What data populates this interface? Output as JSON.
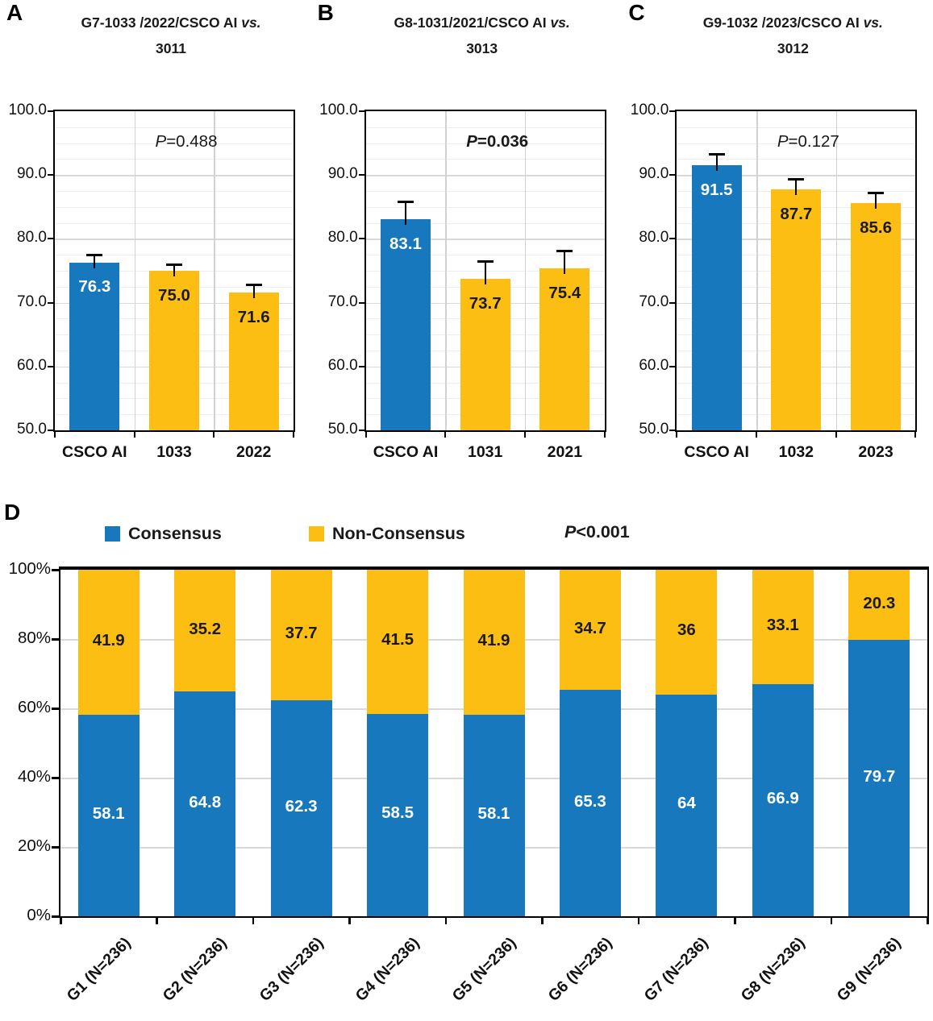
{
  "figure": {
    "background": "#ffffff",
    "colors": {
      "blue": "#1778BE",
      "yellow": "#FDBE13",
      "grid_major": "#d9d9d9",
      "grid_minor": "#ededed",
      "separator": "#d2d2d2",
      "axis_black": "#000000",
      "text_black": "#1a1a1a"
    },
    "legend": {
      "items": [
        {
          "label": "Consensus",
          "color_key": "blue"
        },
        {
          "label": "Non-Consensus",
          "color_key": "yellow"
        }
      ]
    }
  },
  "chart_data": [
    {
      "panel": "A",
      "type": "bar",
      "title": {
        "line1_main": "G7-1033 /2022/CSCO AI ",
        "line1_italic": "vs.",
        "line2": "3011"
      },
      "p_value": {
        "symbol": "P",
        "rest": "=0.488",
        "bold": false
      },
      "categories": [
        "CSCO AI",
        "1033",
        "2022"
      ],
      "values": [
        76.3,
        75.0,
        71.6
      ],
      "value_labels": [
        "76.3",
        "75.0",
        "71.6"
      ],
      "errors_upper": [
        1.3,
        1.2,
        1.4
      ],
      "bar_color_keys": [
        "blue",
        "yellow",
        "yellow"
      ],
      "value_label_colors": [
        "#ffffff",
        "#1a1a1a",
        "#1a1a1a"
      ],
      "ylim": [
        50,
        100
      ],
      "ytick_step": 10,
      "ytick_labels": [
        "50.0",
        "60.0",
        "70.0",
        "80.0",
        "90.0",
        "100.0"
      ],
      "grid": "minor horizontal every 2.5, major every 10, vertical category separators",
      "legend_position": "none"
    },
    {
      "panel": "B",
      "type": "bar",
      "title": {
        "line1_main": "G8-1031/2021/CSCO AI ",
        "line1_italic": "vs.",
        "line2": "3013"
      },
      "p_value": {
        "symbol": "P",
        "rest": "=0.036",
        "bold": true
      },
      "categories": [
        "CSCO AI",
        "1031",
        "2021"
      ],
      "values": [
        83.1,
        73.7,
        75.4
      ],
      "value_labels": [
        "83.1",
        "73.7",
        "75.4"
      ],
      "errors_upper": [
        2.9,
        3.0,
        2.9
      ],
      "bar_color_keys": [
        "blue",
        "yellow",
        "yellow"
      ],
      "value_label_colors": [
        "#ffffff",
        "#1a1a1a",
        "#1a1a1a"
      ],
      "ylim": [
        50,
        100
      ],
      "ytick_step": 10,
      "ytick_labels": [
        "50.0",
        "60.0",
        "70.0",
        "80.0",
        "90.0",
        "100.0"
      ],
      "grid": "minor horizontal every 2.5, major every 10, vertical category separators",
      "legend_position": "none"
    },
    {
      "panel": "C",
      "type": "bar",
      "title": {
        "line1_main": "G9-1032 /2023/CSCO AI ",
        "line1_italic": "vs.",
        "line2": "3012"
      },
      "p_value": {
        "symbol": "P",
        "rest": "=0.127",
        "bold": false
      },
      "categories": [
        "CSCO AI",
        "1032",
        "2023"
      ],
      "values": [
        91.5,
        87.7,
        85.6
      ],
      "value_labels": [
        "91.5",
        "87.7",
        "85.6"
      ],
      "errors_upper": [
        2.0,
        1.8,
        1.8
      ],
      "bar_color_keys": [
        "blue",
        "yellow",
        "yellow"
      ],
      "value_label_colors": [
        "#ffffff",
        "#1a1a1a",
        "#1a1a1a"
      ],
      "ylim": [
        50,
        100
      ],
      "ytick_step": 10,
      "ytick_labels": [
        "50.0",
        "60.0",
        "70.0",
        "80.0",
        "90.0",
        "100.0"
      ],
      "grid": "minor horizontal every 2.5, major every 10, vertical category separators",
      "legend_position": "none"
    },
    {
      "panel": "D",
      "type": "stacked-bar",
      "p_value": {
        "symbol": "P",
        "rest": "<0.001",
        "bold": true
      },
      "categories": [
        "G1 (N=236)",
        "G2 (N=236)",
        "G3 (N=236)",
        "G4 (N=236)",
        "G5 (N=236)",
        "G6 (N=236)",
        "G7 (N=236)",
        "G8 (N=236)",
        "G9 (N=236)"
      ],
      "series": [
        {
          "name": "Consensus",
          "color_key": "blue",
          "values": [
            58.1,
            64.8,
            62.3,
            58.5,
            58.1,
            65.3,
            64,
            66.9,
            79.7
          ],
          "labels": [
            "58.1",
            "64.8",
            "62.3",
            "58.5",
            "58.1",
            "65.3",
            "64",
            "66.9",
            "79.7"
          ],
          "label_color": "#ffffff"
        },
        {
          "name": "Non-Consensus",
          "color_key": "yellow",
          "values": [
            41.9,
            35.2,
            37.7,
            41.5,
            41.9,
            34.7,
            36,
            33.1,
            20.3
          ],
          "labels": [
            "41.9",
            "35.2",
            "37.7",
            "41.5",
            "41.9",
            "34.7",
            "36",
            "33.1",
            "20.3"
          ],
          "label_color": "#1a1a1a"
        }
      ],
      "ylim": [
        0,
        100
      ],
      "ytick_step": 20,
      "ytick_labels": [
        "0%",
        "20%",
        "40%",
        "60%",
        "80%",
        "100%"
      ],
      "grid": "horizontal every 20",
      "legend_position": "top"
    }
  ]
}
